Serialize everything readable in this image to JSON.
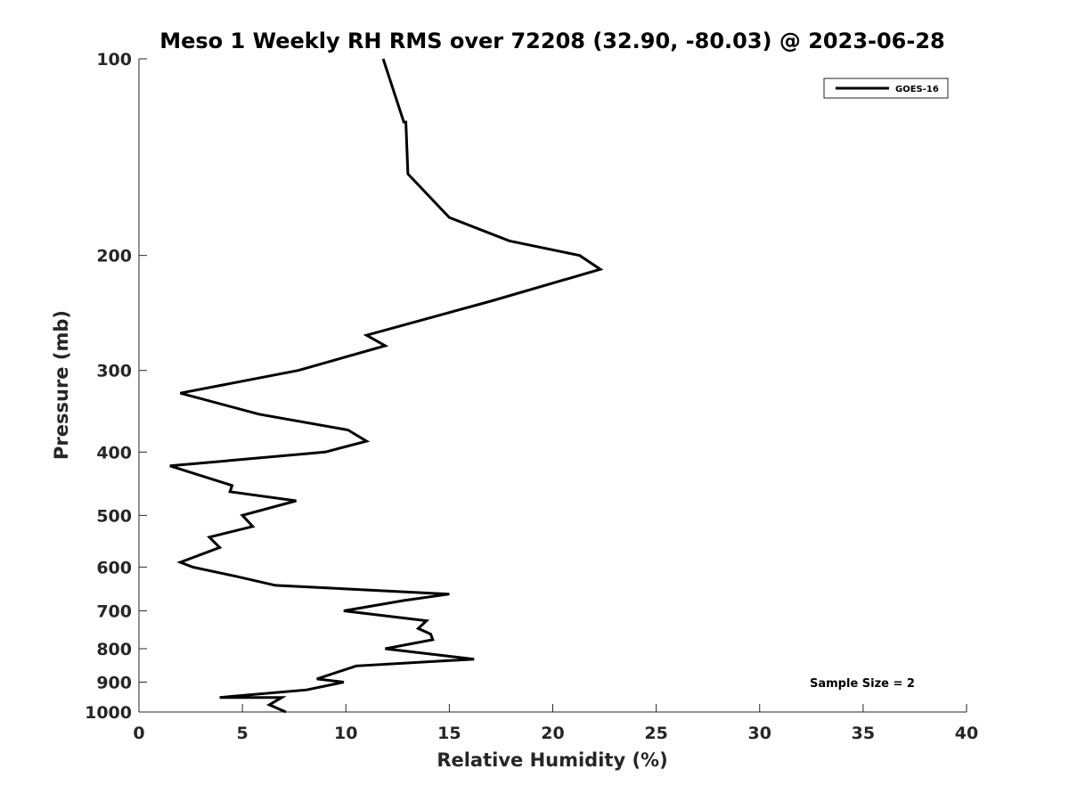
{
  "chart_data": {
    "type": "line",
    "title": "Meso 1 Weekly RH RMS over 72208 (32.90, -80.03) @ 2023-06-28",
    "xlabel": "Relative Humidity (%)",
    "ylabel": "Pressure (mb)",
    "xlim": [
      0,
      40
    ],
    "ylim": [
      100,
      1000
    ],
    "y_scale": "log",
    "y_inverted": true,
    "xticks": [
      0,
      5,
      10,
      15,
      20,
      25,
      30,
      35,
      40
    ],
    "xtick_labels": [
      "0",
      "5",
      "10",
      "15",
      "20",
      "25",
      "30",
      "35",
      "40"
    ],
    "yticks": [
      100,
      200,
      300,
      400,
      500,
      600,
      700,
      800,
      900,
      1000
    ],
    "ytick_labels": [
      "100",
      "200",
      "300",
      "400",
      "500",
      "600",
      "700",
      "800",
      "900",
      "1000"
    ],
    "grid": false,
    "legend_position": "top-right",
    "color": "#000000",
    "series": [
      {
        "name": "GOES-16",
        "x": [
          11.8,
          12.8,
          12.9,
          13.0,
          15.0,
          17.9,
          21.3,
          22.3,
          17.0,
          11.0,
          11.9,
          7.7,
          2.0,
          5.8,
          10.1,
          11.0,
          9.0,
          1.5,
          4.5,
          4.4,
          7.6,
          5.0,
          5.5,
          3.4,
          3.9,
          2.0,
          2.6,
          4.7,
          6.6,
          15.0,
          12.8,
          9.9,
          13.9,
          13.5,
          14.1,
          14.2,
          11.9,
          16.2,
          10.5,
          8.6,
          9.9,
          8.1,
          3.9,
          6.9,
          6.3,
          7.1
        ],
        "y": [
          100,
          125,
          125,
          150,
          175,
          190,
          200,
          210,
          235,
          265,
          275,
          300,
          325,
          350,
          370,
          385,
          400,
          420,
          450,
          460,
          475,
          500,
          520,
          540,
          560,
          590,
          600,
          620,
          640,
          660,
          675,
          700,
          725,
          745,
          760,
          775,
          800,
          830,
          850,
          890,
          900,
          925,
          950,
          950,
          975,
          1000
        ]
      }
    ],
    "annotations": [
      "Sample Size = 2"
    ]
  }
}
